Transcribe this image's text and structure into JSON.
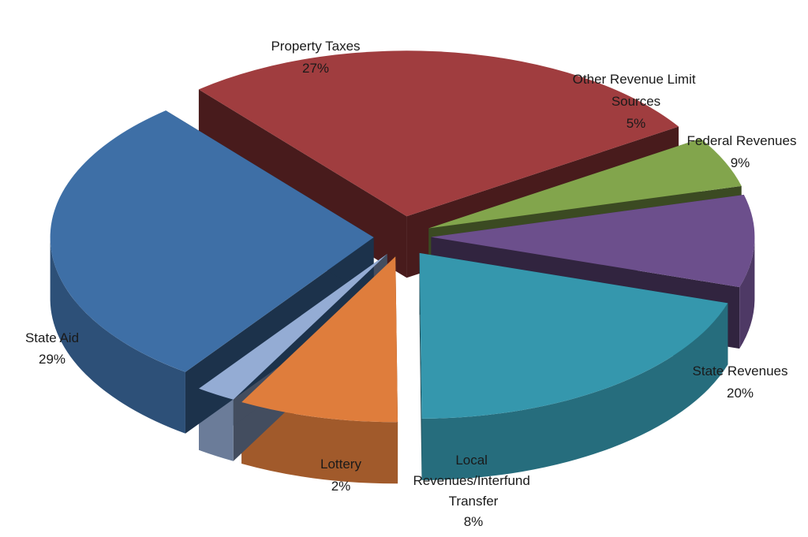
{
  "chart_data": {
    "type": "pie",
    "title": "",
    "three_d": true,
    "exploded": true,
    "legend": "none",
    "slices": [
      {
        "name": "Property Taxes",
        "value": 27,
        "label": "27%",
        "color": "#a03d3f"
      },
      {
        "name": "Other Revenue Limit Sources",
        "value": 5,
        "label": "5%",
        "color": "#82a54c"
      },
      {
        "name": "Federal Revenues",
        "value": 9,
        "label": "9%",
        "color": "#6c4f8c"
      },
      {
        "name": "State Revenues",
        "value": 20,
        "label": "20%",
        "color": "#3597ad"
      },
      {
        "name": "Local Revenues/Interfund Transfer",
        "value": 8,
        "label": "8%",
        "color": "#df7d3c"
      },
      {
        "name": "Lottery",
        "value": 2,
        "label": "2%",
        "color": "#94acd4"
      },
      {
        "name": "State Aid",
        "value": 29,
        "label": "29%",
        "color": "#3e6fa6"
      }
    ]
  }
}
